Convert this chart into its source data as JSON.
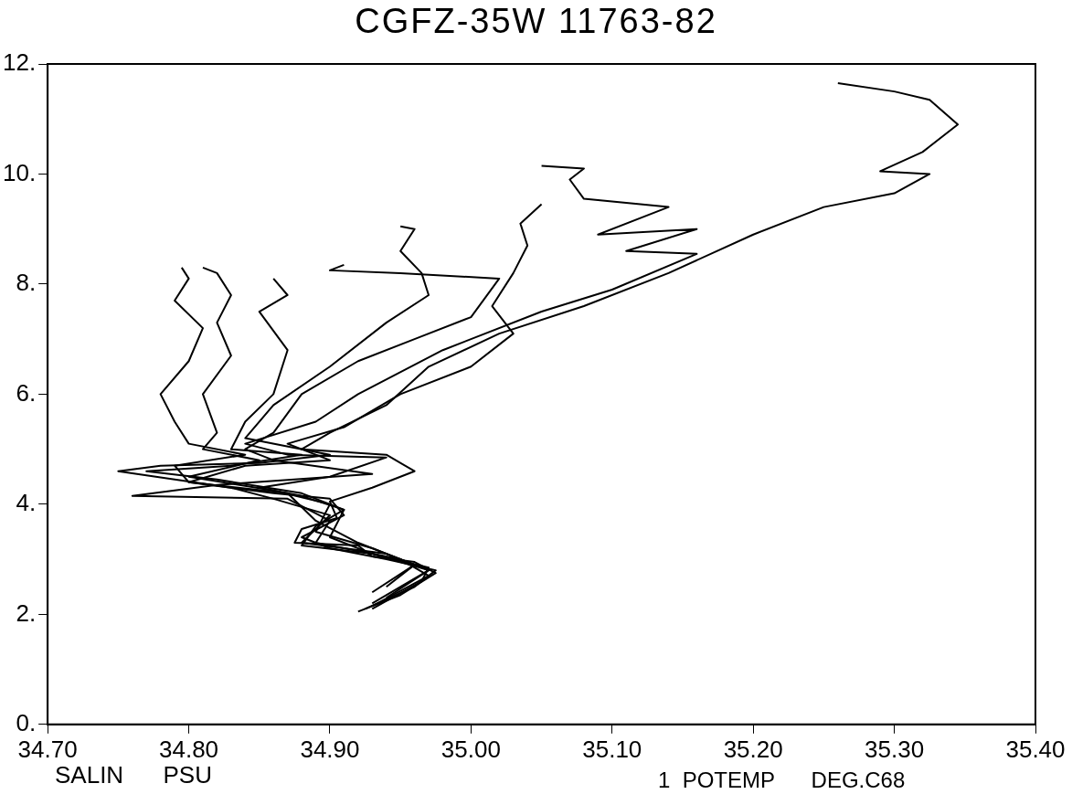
{
  "chart_data": {
    "type": "line",
    "title": "CGFZ-35W 11763-82",
    "xlabel": "SALIN      PSU",
    "annotations": [
      "1  POTEMP      DEG.C68"
    ],
    "xlim": [
      34.7,
      35.4
    ],
    "ylim": [
      0,
      12
    ],
    "xticks": [
      {
        "value": 34.7,
        "label": "34.70"
      },
      {
        "value": 34.8,
        "label": "34.80"
      },
      {
        "value": 34.9,
        "label": "34.90"
      },
      {
        "value": 35.0,
        "label": "35.00"
      },
      {
        "value": 35.1,
        "label": "35.10"
      },
      {
        "value": 35.2,
        "label": "35.20"
      },
      {
        "value": 35.3,
        "label": "35.30"
      },
      {
        "value": 35.4,
        "label": "35.40"
      }
    ],
    "yticks": [
      {
        "value": 0,
        "label": "0."
      },
      {
        "value": 2,
        "label": "2."
      },
      {
        "value": 4,
        "label": "4."
      },
      {
        "value": 6,
        "label": "6."
      },
      {
        "value": 8,
        "label": "8."
      },
      {
        "value": 10,
        "label": "10."
      },
      {
        "value": 12,
        "label": "12."
      }
    ],
    "grid": false,
    "legend": false,
    "marker": "none",
    "line_style": "solid",
    "series": [
      {
        "color": "#000000",
        "x": [
          34.92,
          34.95,
          34.975,
          34.96,
          34.93,
          34.92,
          34.875,
          34.88,
          34.905,
          34.9,
          34.93,
          34.96,
          34.94,
          34.88,
          34.9,
          34.94,
          34.97,
          35.02,
          35.08,
          35.14,
          35.2,
          35.25,
          35.3,
          35.325,
          35.29,
          35.32,
          35.345,
          35.325,
          35.3,
          35.26
        ],
        "values": [
          2.05,
          2.35,
          2.75,
          2.95,
          3.05,
          3.25,
          3.3,
          3.55,
          3.75,
          4.05,
          4.3,
          4.6,
          4.9,
          5.0,
          5.3,
          5.8,
          6.5,
          7.1,
          7.6,
          8.2,
          8.9,
          9.4,
          9.65,
          10.0,
          10.05,
          10.4,
          10.9,
          11.35,
          11.5,
          11.65
        ]
      },
      {
        "color": "#000000",
        "x": [
          34.93,
          34.965,
          34.97,
          34.93,
          34.88,
          34.89,
          34.91,
          34.88,
          34.85,
          34.9,
          34.94,
          34.87,
          34.84,
          34.89,
          34.92,
          34.98,
          35.05,
          35.1,
          35.16,
          35.11,
          35.16,
          35.09,
          35.14,
          35.08,
          35.07,
          35.08,
          35.05
        ],
        "values": [
          2.1,
          2.6,
          2.85,
          3.1,
          3.25,
          3.6,
          3.9,
          4.15,
          4.3,
          4.5,
          4.85,
          4.9,
          5.1,
          5.5,
          6.0,
          6.8,
          7.5,
          7.9,
          8.55,
          8.6,
          9.0,
          8.9,
          9.4,
          9.55,
          9.9,
          10.1,
          10.15
        ]
      },
      {
        "color": "#000000",
        "x": [
          34.925,
          34.96,
          34.975,
          34.94,
          34.9,
          34.88,
          34.91,
          34.9,
          34.86,
          34.8,
          34.84,
          34.9,
          34.87,
          34.91,
          34.95,
          35.0,
          35.03,
          35.015,
          35.03,
          35.04,
          35.035,
          35.05
        ],
        "values": [
          2.1,
          2.5,
          2.8,
          3.0,
          3.2,
          3.4,
          3.8,
          4.1,
          4.2,
          4.4,
          4.7,
          4.8,
          5.1,
          5.4,
          6.0,
          6.5,
          7.1,
          7.6,
          8.2,
          8.7,
          9.1,
          9.45
        ]
      },
      {
        "color": "#000000",
        "x": [
          34.93,
          34.97,
          34.95,
          34.89,
          34.9,
          34.87,
          34.76,
          34.82,
          34.93,
          34.86,
          34.84,
          34.86,
          34.88,
          34.92,
          34.96,
          35.0,
          35.02,
          34.95,
          34.9,
          34.91
        ],
        "values": [
          2.15,
          2.7,
          3.0,
          3.3,
          3.7,
          4.1,
          4.15,
          4.35,
          4.55,
          4.8,
          5.0,
          5.3,
          6.0,
          6.6,
          7.0,
          7.4,
          8.1,
          8.2,
          8.25,
          8.35
        ]
      },
      {
        "color": "#000000",
        "x": [
          34.93,
          34.97,
          34.94,
          34.88,
          34.9,
          34.86,
          34.83,
          34.75,
          34.78,
          34.85,
          34.9,
          34.84,
          34.86,
          34.9,
          34.94,
          34.97,
          34.965,
          34.95,
          34.96,
          34.95
        ],
        "values": [
          2.2,
          2.8,
          3.1,
          3.3,
          3.8,
          4.1,
          4.3,
          4.6,
          4.7,
          4.75,
          4.9,
          5.2,
          5.8,
          6.5,
          7.3,
          7.8,
          8.2,
          8.6,
          9.0,
          9.05
        ]
      },
      {
        "color": "#000000",
        "x": [
          34.94,
          34.97,
          34.93,
          34.9,
          34.91,
          34.88,
          34.82,
          34.77,
          34.83,
          34.88,
          34.83,
          34.84,
          34.86,
          34.87,
          34.85,
          34.87,
          34.86
        ],
        "values": [
          2.3,
          2.8,
          3.1,
          3.4,
          3.9,
          4.2,
          4.45,
          4.6,
          4.7,
          4.9,
          5.0,
          5.5,
          6.0,
          6.8,
          7.5,
          7.8,
          8.1
        ]
      },
      {
        "color": "#000000",
        "x": [
          34.93,
          34.96,
          34.93,
          34.89,
          34.9,
          34.86,
          34.8,
          34.85,
          34.81,
          34.82,
          34.81,
          34.83,
          34.82,
          34.83,
          34.82,
          34.81
        ],
        "values": [
          2.4,
          2.9,
          3.2,
          3.5,
          4.0,
          4.25,
          4.5,
          4.8,
          5.0,
          5.3,
          6.0,
          6.7,
          7.3,
          7.8,
          8.2,
          8.3
        ]
      },
      {
        "color": "#000000",
        "x": [
          34.94,
          34.96,
          34.92,
          34.89,
          34.87,
          34.8,
          34.79,
          34.84,
          34.8,
          34.79,
          34.78,
          34.8,
          34.81,
          34.79,
          34.8,
          34.795
        ],
        "values": [
          2.5,
          2.9,
          3.3,
          3.7,
          4.2,
          4.4,
          4.7,
          4.9,
          5.1,
          5.5,
          6.0,
          6.6,
          7.2,
          7.7,
          8.1,
          8.3
        ]
      }
    ]
  }
}
